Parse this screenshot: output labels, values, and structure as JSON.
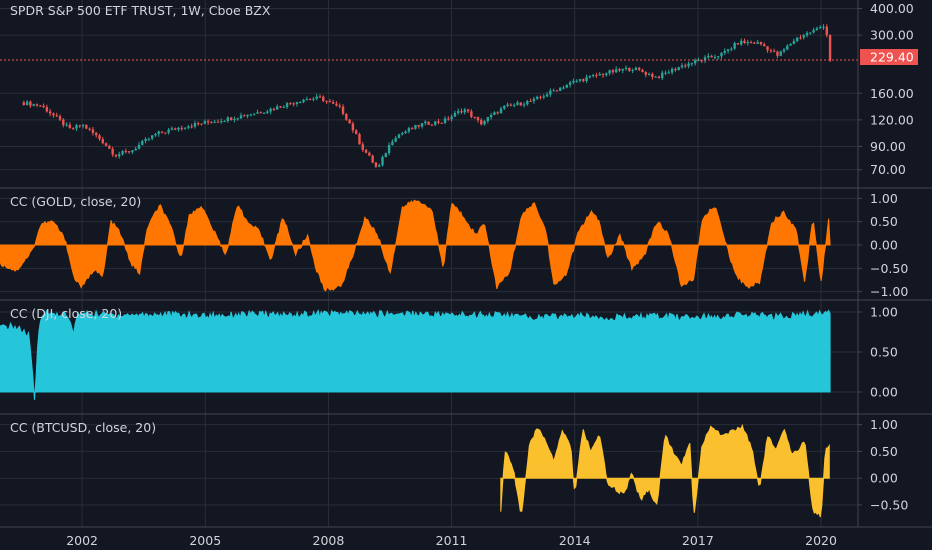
{
  "chart_data": [
    {
      "type": "candlestick",
      "title": "SPDR S&P 500 ETF TRUST, 1W, Cboe BZX",
      "ylim": [
        60,
        420
      ],
      "yscale": "log",
      "ytick_labels": [
        "400.00",
        "300.00",
        "160.00",
        "120.00",
        "90.00",
        "70.00"
      ],
      "last_price_label": "229.40",
      "up_color": "#26a69a",
      "down_color": "#ef5350",
      "close_series": [
        [
          2000.5,
          145
        ],
        [
          2001.0,
          140
        ],
        [
          2001.3,
          126
        ],
        [
          2001.7,
          108
        ],
        [
          2002.0,
          114
        ],
        [
          2002.5,
          95
        ],
        [
          2002.8,
          82
        ],
        [
          2003.2,
          86
        ],
        [
          2003.8,
          103
        ],
        [
          2004.5,
          112
        ],
        [
          2005.5,
          121
        ],
        [
          2006.5,
          133
        ],
        [
          2007.4,
          150
        ],
        [
          2007.8,
          152
        ],
        [
          2008.3,
          135
        ],
        [
          2008.8,
          90
        ],
        [
          2009.2,
          70
        ],
        [
          2009.6,
          100
        ],
        [
          2010.3,
          115
        ],
        [
          2010.8,
          118
        ],
        [
          2011.3,
          135
        ],
        [
          2011.7,
          115
        ],
        [
          2012.3,
          138
        ],
        [
          2013.0,
          148
        ],
        [
          2013.5,
          165
        ],
        [
          2014.0,
          182
        ],
        [
          2014.8,
          200
        ],
        [
          2015.4,
          210
        ],
        [
          2016.0,
          190
        ],
        [
          2016.6,
          215
        ],
        [
          2017.0,
          227
        ],
        [
          2017.6,
          245
        ],
        [
          2018.0,
          278
        ],
        [
          2018.5,
          275
        ],
        [
          2018.95,
          240
        ],
        [
          2019.4,
          290
        ],
        [
          2019.9,
          320
        ],
        [
          2020.1,
          338
        ],
        [
          2020.22,
          229.4
        ]
      ]
    },
    {
      "type": "area",
      "title": "CC (GOLD, close, 20)",
      "ylim": [
        -1.05,
        1.05
      ],
      "ytick_labels": [
        "1.00",
        "0.50",
        "0.00",
        "−0.50",
        "−1.00"
      ],
      "color": "#ff7700",
      "points": [
        [
          2000.0,
          -0.4
        ],
        [
          2000.4,
          -0.55
        ],
        [
          2000.8,
          -0.1
        ],
        [
          2001.0,
          0.45
        ],
        [
          2001.3,
          0.5
        ],
        [
          2001.6,
          0.1
        ],
        [
          2001.8,
          -0.7
        ],
        [
          2002.0,
          -0.9
        ],
        [
          2002.3,
          -0.5
        ],
        [
          2002.5,
          -0.7
        ],
        [
          2002.7,
          0.5
        ],
        [
          2002.9,
          0.3
        ],
        [
          2003.2,
          -0.4
        ],
        [
          2003.4,
          -0.6
        ],
        [
          2003.6,
          0.4
        ],
        [
          2003.9,
          0.85
        ],
        [
          2004.2,
          0.3
        ],
        [
          2004.4,
          -0.3
        ],
        [
          2004.6,
          0.6
        ],
        [
          2004.9,
          0.85
        ],
        [
          2005.2,
          0.3
        ],
        [
          2005.5,
          -0.2
        ],
        [
          2005.8,
          0.9
        ],
        [
          2006.0,
          0.5
        ],
        [
          2006.3,
          0.3
        ],
        [
          2006.6,
          -0.3
        ],
        [
          2006.9,
          0.6
        ],
        [
          2007.2,
          -0.2
        ],
        [
          2007.5,
          0.2
        ],
        [
          2007.7,
          -0.5
        ],
        [
          2007.9,
          -0.95
        ],
        [
          2008.3,
          -0.9
        ],
        [
          2008.6,
          -0.2
        ],
        [
          2008.9,
          0.6
        ],
        [
          2009.2,
          0.2
        ],
        [
          2009.5,
          -0.6
        ],
        [
          2009.8,
          0.8
        ],
        [
          2010.1,
          0.95
        ],
        [
          2010.5,
          0.8
        ],
        [
          2010.8,
          -0.5
        ],
        [
          2011.0,
          0.9
        ],
        [
          2011.3,
          0.6
        ],
        [
          2011.6,
          0.2
        ],
        [
          2011.8,
          0.5
        ],
        [
          2012.1,
          -0.9
        ],
        [
          2012.4,
          -0.6
        ],
        [
          2012.7,
          0.6
        ],
        [
          2013.0,
          0.9
        ],
        [
          2013.3,
          0.3
        ],
        [
          2013.5,
          -0.9
        ],
        [
          2013.8,
          -0.6
        ],
        [
          2014.1,
          0.3
        ],
        [
          2014.4,
          0.7
        ],
        [
          2014.6,
          0.5
        ],
        [
          2014.8,
          -0.3
        ],
        [
          2015.1,
          0.2
        ],
        [
          2015.4,
          -0.5
        ],
        [
          2015.7,
          -0.2
        ],
        [
          2016.0,
          0.5
        ],
        [
          2016.3,
          0.2
        ],
        [
          2016.6,
          -0.9
        ],
        [
          2016.9,
          -0.7
        ],
        [
          2017.1,
          0.5
        ],
        [
          2017.4,
          0.85
        ],
        [
          2017.6,
          0.3
        ],
        [
          2017.9,
          -0.6
        ],
        [
          2018.2,
          -0.9
        ],
        [
          2018.5,
          -0.8
        ],
        [
          2018.8,
          0.5
        ],
        [
          2019.1,
          0.7
        ],
        [
          2019.4,
          0.3
        ],
        [
          2019.6,
          -0.8
        ],
        [
          2019.8,
          0.6
        ],
        [
          2020.0,
          -0.8
        ],
        [
          2020.2,
          0.7
        ],
        [
          2020.22,
          0.0
        ]
      ]
    },
    {
      "type": "area",
      "title": "CC (DJI, close, 20)",
      "ylim": [
        -0.2,
        1.05
      ],
      "ytick_labels": [
        "1.00",
        "0.50",
        "0.00"
      ],
      "color": "#26c6da",
      "points": [
        [
          2000.0,
          0.8
        ],
        [
          2000.3,
          0.82
        ],
        [
          2000.5,
          0.78
        ],
        [
          2000.7,
          0.7
        ],
        [
          2000.8,
          0.2
        ],
        [
          2000.85,
          -0.2
        ],
        [
          2000.9,
          0.5
        ],
        [
          2001.0,
          0.98
        ],
        [
          2001.6,
          0.97
        ],
        [
          2001.8,
          0.75
        ],
        [
          2001.9,
          0.98
        ],
        [
          2003.0,
          0.96
        ],
        [
          2004.0,
          0.97
        ],
        [
          2005.0,
          0.95
        ],
        [
          2006.0,
          0.97
        ],
        [
          2007.0,
          0.96
        ],
        [
          2008.0,
          0.98
        ],
        [
          2009.0,
          0.97
        ],
        [
          2010.0,
          0.98
        ],
        [
          2011.0,
          0.96
        ],
        [
          2012.0,
          0.97
        ],
        [
          2013.0,
          0.93
        ],
        [
          2014.0,
          0.95
        ],
        [
          2015.0,
          0.93
        ],
        [
          2016.0,
          0.94
        ],
        [
          2017.0,
          0.93
        ],
        [
          2018.0,
          0.96
        ],
        [
          2019.0,
          0.94
        ],
        [
          2020.0,
          0.98
        ],
        [
          2020.22,
          0.99
        ]
      ]
    },
    {
      "type": "area",
      "title": "CC (BTCUSD, close, 20)",
      "ylim": [
        -0.8,
        1.05
      ],
      "ytick_labels": [
        "1.00",
        "0.50",
        "0.00",
        "−0.50"
      ],
      "color": "#fbc02d",
      "points": [
        [
          2012.2,
          -0.6
        ],
        [
          2012.3,
          0.5
        ],
        [
          2012.5,
          0.2
        ],
        [
          2012.7,
          -0.7
        ],
        [
          2012.9,
          0.6
        ],
        [
          2013.1,
          0.95
        ],
        [
          2013.3,
          0.7
        ],
        [
          2013.5,
          0.3
        ],
        [
          2013.7,
          0.9
        ],
        [
          2013.9,
          0.6
        ],
        [
          2014.0,
          -0.3
        ],
        [
          2014.2,
          0.9
        ],
        [
          2014.4,
          0.5
        ],
        [
          2014.6,
          0.8
        ],
        [
          2014.8,
          -0.1
        ],
        [
          2015.0,
          -0.2
        ],
        [
          2015.2,
          -0.3
        ],
        [
          2015.4,
          0.1
        ],
        [
          2015.6,
          -0.4
        ],
        [
          2015.8,
          -0.2
        ],
        [
          2016.0,
          -0.5
        ],
        [
          2016.2,
          0.8
        ],
        [
          2016.4,
          0.5
        ],
        [
          2016.6,
          0.2
        ],
        [
          2016.8,
          0.7
        ],
        [
          2016.9,
          -0.7
        ],
        [
          2017.1,
          0.6
        ],
        [
          2017.3,
          0.95
        ],
        [
          2017.6,
          0.8
        ],
        [
          2017.9,
          0.9
        ],
        [
          2018.1,
          0.95
        ],
        [
          2018.3,
          0.6
        ],
        [
          2018.5,
          -0.2
        ],
        [
          2018.7,
          0.8
        ],
        [
          2018.9,
          0.5
        ],
        [
          2019.1,
          0.9
        ],
        [
          2019.3,
          0.4
        ],
        [
          2019.6,
          0.7
        ],
        [
          2019.8,
          -0.6
        ],
        [
          2020.0,
          -0.7
        ],
        [
          2020.1,
          0.5
        ],
        [
          2020.2,
          0.65
        ]
      ]
    }
  ],
  "x_axis": {
    "range": [
      2000.0,
      2020.9
    ],
    "ticks": [
      [
        2002,
        "2002"
      ],
      [
        2005,
        "2005"
      ],
      [
        2008,
        "2008"
      ],
      [
        2011,
        "2011"
      ],
      [
        2014,
        "2014"
      ],
      [
        2017,
        "2017"
      ],
      [
        2020,
        "2020"
      ]
    ]
  },
  "colors": {
    "background": "#131722",
    "grid": "#2a2e39",
    "separator": "#434651",
    "text": "#d1d4dc",
    "price_line": "#ef5350",
    "badge": "#ef5350"
  }
}
